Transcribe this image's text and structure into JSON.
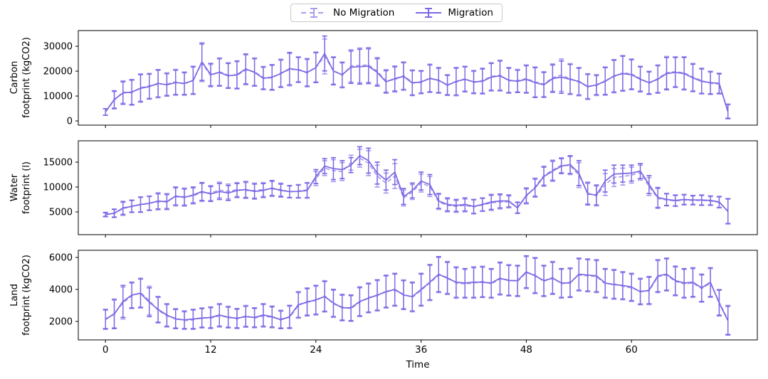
{
  "legend": {
    "items": [
      {
        "label": "No Migration",
        "key": "no_migration",
        "style": "dashed"
      },
      {
        "label": "Migration",
        "key": "migration",
        "style": "solid"
      }
    ]
  },
  "xlabel": "Time",
  "colors": {
    "no_migration": "#a79df0",
    "migration": "#7b68e4",
    "axis": "#000000"
  },
  "chart_data": [
    {
      "id": "carbon",
      "type": "line",
      "ylabel": "Carbon\nfootprint (kgCO2)",
      "xlim": [
        -3.1,
        74.35
      ],
      "ylim": [
        -1700,
        36300
      ],
      "yticks": [
        0,
        10000,
        20000,
        30000
      ],
      "xticks": [
        0,
        12,
        24,
        36,
        48,
        60
      ],
      "x": [
        0,
        1,
        2,
        3,
        4,
        5,
        6,
        7,
        8,
        9,
        10,
        11,
        12,
        13,
        14,
        15,
        16,
        17,
        18,
        19,
        20,
        21,
        22,
        23,
        24,
        25,
        26,
        27,
        28,
        29,
        30,
        31,
        32,
        33,
        34,
        35,
        36,
        37,
        38,
        39,
        40,
        41,
        42,
        43,
        44,
        45,
        46,
        47,
        48,
        49,
        50,
        51,
        52,
        53,
        54,
        55,
        56,
        57,
        58,
        59,
        60,
        61,
        62,
        63,
        64,
        65,
        66,
        67,
        68,
        69,
        70,
        71
      ],
      "err": [
        1300,
        3500,
        4500,
        5000,
        5500,
        5000,
        5500,
        4500,
        5000,
        4500,
        5500,
        7500,
        4500,
        5500,
        5000,
        5500,
        6000,
        5500,
        4500,
        5000,
        5500,
        6500,
        5000,
        5500,
        6000,
        7000,
        5500,
        5000,
        6500,
        7000,
        7000,
        5500,
        4500,
        5000,
        5500,
        5000,
        4500,
        5500,
        5000,
        4000,
        5500,
        5000,
        4500,
        5000,
        5500,
        6000,
        5000,
        4500,
        5500,
        6000,
        5000,
        5500,
        6500,
        6000,
        5500,
        5000,
        4000,
        5500,
        6500,
        7000,
        6000,
        5000,
        4500,
        5500,
        6500,
        6000,
        6500,
        5500,
        5000,
        4500,
        4000,
        2800
      ],
      "series": [
        {
          "name": "No Migration",
          "key": "no_migration",
          "linestyle": "dashed",
          "values": [
            3600,
            8300,
            11600,
            11300,
            13400,
            14100,
            14800,
            14800,
            15700,
            14800,
            16500,
            23300,
            18200,
            19800,
            18400,
            18300,
            20500,
            19800,
            17400,
            17300,
            19300,
            20600,
            20800,
            19200,
            21700,
            25900,
            20300,
            18300,
            22100,
            22300,
            22500,
            20000,
            16100,
            16600,
            18200,
            15500,
            15400,
            17300,
            16100,
            14600,
            15600,
            17000,
            15400,
            16200,
            17900,
            18400,
            16100,
            16200,
            17000,
            15700,
            14800,
            17400,
            18400,
            17000,
            15600,
            14000,
            14200,
            16200,
            17800,
            19300,
            18900,
            17000,
            15100,
            17000,
            19400,
            19800,
            19300,
            17600,
            16200,
            15100,
            14800,
            4000
          ]
        },
        {
          "name": "Migration",
          "key": "migration",
          "linestyle": "solid",
          "values": [
            3600,
            8600,
            11200,
            11600,
            13100,
            13800,
            15100,
            14500,
            15400,
            15100,
            16200,
            23800,
            18600,
            19500,
            18100,
            18600,
            20900,
            19500,
            17100,
            17600,
            19000,
            21000,
            20500,
            19500,
            21400,
            27100,
            20000,
            18600,
            21600,
            21800,
            22000,
            19500,
            15700,
            17000,
            17900,
            15200,
            15700,
            17000,
            16400,
            14300,
            15900,
            16700,
            15700,
            15900,
            17600,
            18100,
            16400,
            15900,
            16700,
            15400,
            14500,
            17000,
            17600,
            16700,
            15900,
            13700,
            14500,
            15900,
            18100,
            19000,
            18600,
            16700,
            15400,
            16700,
            19000,
            19500,
            19000,
            17300,
            15900,
            15400,
            15100,
            3700
          ]
        }
      ]
    },
    {
      "id": "water",
      "type": "line",
      "ylabel": "Water\nfootprint (l)",
      "xlim": [
        -3.1,
        74.35
      ],
      "ylim": [
        430,
        19290
      ],
      "yticks": [
        5000,
        10000,
        15000
      ],
      "xticks": [
        0,
        12,
        24,
        36,
        48,
        60
      ],
      "x": [
        0,
        1,
        2,
        3,
        4,
        5,
        6,
        7,
        8,
        9,
        10,
        11,
        12,
        13,
        14,
        15,
        16,
        17,
        18,
        19,
        20,
        21,
        22,
        23,
        24,
        25,
        26,
        27,
        28,
        29,
        30,
        31,
        32,
        33,
        34,
        35,
        36,
        37,
        38,
        39,
        40,
        41,
        42,
        43,
        44,
        45,
        46,
        47,
        48,
        49,
        50,
        51,
        52,
        53,
        54,
        55,
        56,
        57,
        58,
        59,
        60,
        61,
        62,
        63,
        64,
        65,
        66,
        67,
        68,
        69,
        70,
        71
      ],
      "err": [
        400,
        800,
        1300,
        1200,
        1500,
        1400,
        1600,
        1500,
        1800,
        1700,
        1600,
        1800,
        1500,
        1600,
        1500,
        1400,
        1600,
        1500,
        1400,
        1500,
        1300,
        1200,
        1300,
        1500,
        1400,
        1500,
        2200,
        1800,
        1500,
        1800,
        2500,
        2200,
        2000,
        2500,
        1600,
        1500,
        1800,
        2000,
        1500,
        1300,
        1200,
        1300,
        1400,
        1300,
        1500,
        1400,
        1200,
        1100,
        1500,
        1800,
        1900,
        2000,
        1500,
        1800,
        2500,
        2200,
        2000,
        2200,
        1800,
        1700,
        1600,
        1500,
        1800,
        2000,
        1200,
        1100,
        1000,
        900,
        1000,
        900,
        1100,
        2500
      ],
      "series": [
        {
          "name": "No Migration",
          "key": "no_migration",
          "linestyle": "dashed",
          "values": [
            4400,
            4800,
            5600,
            6200,
            6400,
            6800,
            7000,
            7200,
            8000,
            8100,
            8200,
            8900,
            8800,
            9400,
            9100,
            9500,
            9300,
            9300,
            9500,
            9600,
            9500,
            9000,
            9200,
            9400,
            11700,
            13800,
            13300,
            13100,
            14900,
            15800,
            14800,
            12200,
            10800,
            12200,
            7800,
            9000,
            10800,
            10100,
            7000,
            6300,
            6100,
            6300,
            6000,
            6400,
            6800,
            7000,
            7000,
            5900,
            8100,
            10000,
            12300,
            13400,
            14400,
            14300,
            12400,
            8800,
            8200,
            10500,
            11900,
            12100,
            12400,
            12900,
            10100,
            7700,
            7400,
            7200,
            7400,
            7300,
            7300,
            7200,
            6900,
            5200
          ]
        },
        {
          "name": "Migration",
          "key": "migration",
          "linestyle": "solid",
          "values": [
            4500,
            4700,
            5800,
            6100,
            6500,
            6700,
            7200,
            7000,
            8200,
            7900,
            8400,
            9100,
            8600,
            9100,
            8800,
            9300,
            9500,
            9100,
            9300,
            9800,
            9300,
            9100,
            9100,
            9300,
            12100,
            14200,
            13700,
            13500,
            14400,
            16300,
            15300,
            12800,
            11400,
            13000,
            8100,
            9300,
            11200,
            10500,
            7200,
            6500,
            6300,
            6500,
            6100,
            6500,
            7000,
            7200,
            7200,
            5800,
            8300,
            9800,
            12100,
            13200,
            14200,
            14500,
            12800,
            8600,
            8400,
            11200,
            12600,
            12700,
            12800,
            13200,
            10500,
            7900,
            7500,
            7300,
            7500,
            7400,
            7400,
            7300,
            7000,
            5100
          ]
        }
      ]
    },
    {
      "id": "land",
      "type": "line",
      "ylabel": "Land\nfootprint (kgCO2)",
      "xlim": [
        -3.1,
        74.35
      ],
      "ylim": [
        845,
        6445
      ],
      "yticks": [
        2000,
        4000,
        6000
      ],
      "xticks": [
        0,
        12,
        24,
        36,
        48,
        60
      ],
      "x": [
        0,
        1,
        2,
        3,
        4,
        5,
        6,
        7,
        8,
        9,
        10,
        11,
        12,
        13,
        14,
        15,
        16,
        17,
        18,
        19,
        20,
        21,
        22,
        23,
        24,
        25,
        26,
        27,
        28,
        29,
        30,
        31,
        32,
        33,
        34,
        35,
        36,
        37,
        38,
        39,
        40,
        41,
        42,
        43,
        44,
        45,
        46,
        47,
        48,
        49,
        50,
        51,
        52,
        53,
        54,
        55,
        56,
        57,
        58,
        59,
        60,
        61,
        62,
        63,
        64,
        65,
        66,
        67,
        68,
        69,
        70,
        71
      ],
      "err": [
        600,
        900,
        1000,
        800,
        900,
        900,
        800,
        700,
        600,
        550,
        600,
        600,
        650,
        700,
        650,
        600,
        650,
        600,
        700,
        650,
        550,
        700,
        800,
        850,
        900,
        950,
        850,
        800,
        800,
        900,
        900,
        950,
        1000,
        1000,
        900,
        900,
        1000,
        1100,
        1100,
        1000,
        950,
        900,
        950,
        950,
        900,
        1000,
        950,
        950,
        1000,
        1100,
        950,
        1000,
        900,
        900,
        1000,
        1000,
        1000,
        900,
        900,
        850,
        850,
        800,
        850,
        1000,
        1000,
        900,
        900,
        900,
        850,
        900,
        800,
        900
      ],
      "series": [
        {
          "name": "No Migration",
          "key": "no_migration",
          "linestyle": "dashed",
          "values": [
            2100,
            2500,
            3150,
            3600,
            3800,
            3300,
            2700,
            2350,
            2200,
            2050,
            2100,
            2250,
            2200,
            2350,
            2300,
            2150,
            2350,
            2200,
            2350,
            2250,
            2150,
            2250,
            3000,
            3250,
            3300,
            3600,
            3100,
            2900,
            2800,
            3200,
            3500,
            3600,
            3900,
            3950,
            3700,
            3500,
            3950,
            4400,
            4900,
            4750,
            4400,
            4350,
            4400,
            4500,
            4350,
            4650,
            4600,
            4500,
            5050,
            4900,
            4500,
            4750,
            4350,
            4450,
            4900,
            4850,
            4800,
            4350,
            4350,
            4200,
            4100,
            3900,
            3900,
            4800,
            4900,
            4500,
            4350,
            4400,
            4050,
            4400,
            3200,
            2100
          ]
        },
        {
          "name": "Migration",
          "key": "migration",
          "linestyle": "solid",
          "values": [
            2150,
            2450,
            3250,
            3650,
            3750,
            3200,
            2750,
            2400,
            2150,
            2100,
            2150,
            2200,
            2250,
            2400,
            2250,
            2200,
            2300,
            2250,
            2400,
            2300,
            2100,
            2300,
            3050,
            3200,
            3350,
            3550,
            3150,
            2850,
            2850,
            3250,
            3450,
            3650,
            3850,
            4000,
            3650,
            3550,
            4000,
            4450,
            4950,
            4700,
            4450,
            4400,
            4450,
            4450,
            4400,
            4700,
            4550,
            4550,
            5100,
            4850,
            4550,
            4700,
            4400,
            4400,
            4950,
            4900,
            4850,
            4400,
            4300,
            4250,
            4150,
            3850,
            3950,
            4850,
            4950,
            4550,
            4400,
            4450,
            4100,
            4450,
            3150,
            2050
          ]
        }
      ]
    }
  ]
}
